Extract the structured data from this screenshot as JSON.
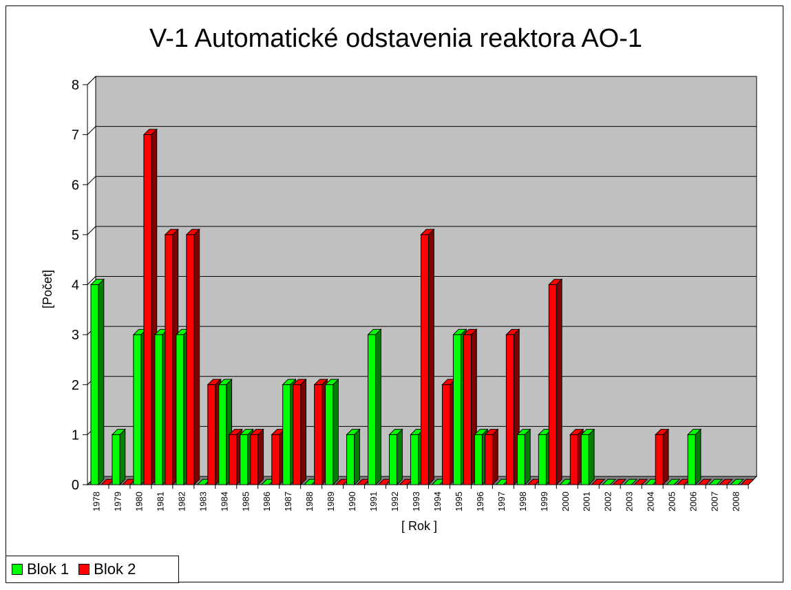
{
  "chart_data": {
    "type": "bar",
    "title": "V-1 Automatické odstavenia reaktora AO-1",
    "xlabel": "[ Rok ]",
    "ylabel": "[Počet]",
    "ylim": [
      0,
      8
    ],
    "yticks": [
      "0",
      "1",
      "2",
      "3",
      "4",
      "5",
      "6",
      "7",
      "8"
    ],
    "grid": true,
    "three_d": true,
    "legend_position": "bottom-left",
    "plot_background": "#c0c0c0",
    "categories": [
      "1978",
      "1979",
      "1980",
      "1981",
      "1982",
      "1983",
      "1984",
      "1985",
      "1986",
      "1987",
      "1988",
      "1989",
      "1990",
      "1991",
      "1992",
      "1993",
      "1994",
      "1995",
      "1996",
      "1997",
      "1998",
      "1999",
      "2000",
      "2001",
      "2002",
      "2003",
      "2004",
      "2005",
      "2006",
      "2007",
      "2008"
    ],
    "series": [
      {
        "name": "Blok 1",
        "color": "#00ff00",
        "side_color": "#008000",
        "values": [
          4,
          1,
          3,
          3,
          3,
          0,
          2,
          1,
          0,
          2,
          0,
          2,
          1,
          3,
          1,
          1,
          0,
          3,
          1,
          0,
          1,
          1,
          0,
          1,
          0,
          0,
          0,
          0,
          1,
          0,
          0
        ]
      },
      {
        "name": "Blok 2",
        "color": "#ff0000",
        "side_color": "#800000",
        "values": [
          0,
          0,
          7,
          5,
          5,
          2,
          1,
          1,
          1,
          2,
          2,
          0,
          0,
          0,
          0,
          5,
          2,
          3,
          1,
          3,
          0,
          4,
          1,
          0,
          0,
          0,
          1,
          0,
          0,
          0,
          0
        ]
      }
    ]
  }
}
